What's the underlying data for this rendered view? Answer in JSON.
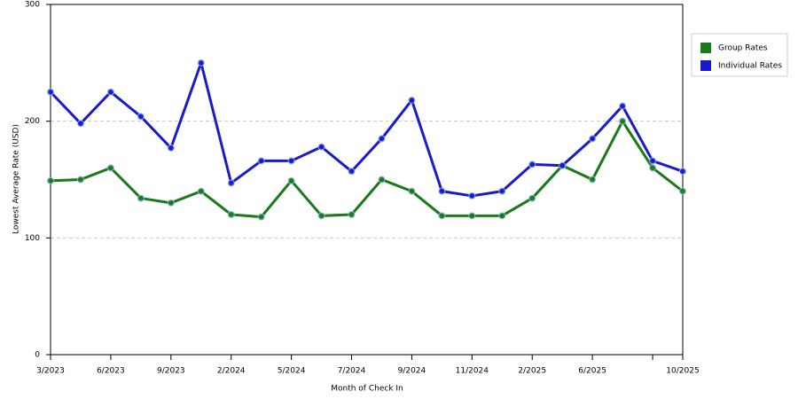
{
  "chart_data": {
    "type": "line",
    "x_label": "Month of Check In",
    "y_label": "Lowest Average Rate (USD)",
    "categories": [
      "3/2023",
      null,
      "6/2023",
      null,
      "9/2023",
      null,
      "2/2024",
      null,
      "5/2024",
      null,
      "7/2024",
      null,
      "9/2024",
      null,
      "11/2024",
      null,
      "2/2025",
      null,
      "6/2025",
      null,
      null,
      "10/2025"
    ],
    "series": [
      {
        "name": "Group Rates",
        "color": "#1a7a1a",
        "values": [
          149,
          150,
          160,
          134,
          130,
          140,
          120,
          118,
          149,
          119,
          120,
          150,
          140,
          119,
          119,
          119,
          134,
          162,
          150,
          200,
          160,
          140
        ]
      },
      {
        "name": "Individual Rates",
        "color": "#1a1acc",
        "values": [
          225,
          198,
          225,
          204,
          177,
          250,
          147,
          166,
          166,
          178,
          157,
          185,
          218,
          140,
          136,
          140,
          163,
          162,
          185,
          213,
          166,
          157
        ]
      }
    ],
    "ylim": [
      0,
      300
    ],
    "yticks": [
      0,
      100,
      200,
      300
    ],
    "grid": true,
    "legend": "right"
  }
}
